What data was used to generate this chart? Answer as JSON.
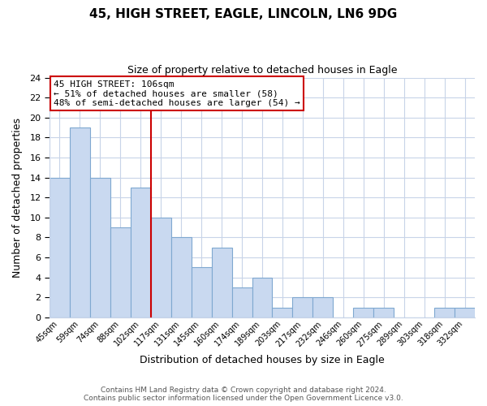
{
  "title": "45, HIGH STREET, EAGLE, LINCOLN, LN6 9DG",
  "subtitle": "Size of property relative to detached houses in Eagle",
  "xlabel": "Distribution of detached houses by size in Eagle",
  "ylabel": "Number of detached properties",
  "bins": [
    "45sqm",
    "59sqm",
    "74sqm",
    "88sqm",
    "102sqm",
    "117sqm",
    "131sqm",
    "145sqm",
    "160sqm",
    "174sqm",
    "189sqm",
    "203sqm",
    "217sqm",
    "232sqm",
    "246sqm",
    "260sqm",
    "275sqm",
    "289sqm",
    "303sqm",
    "318sqm",
    "332sqm"
  ],
  "values": [
    14,
    19,
    14,
    9,
    13,
    10,
    8,
    5,
    7,
    3,
    4,
    1,
    2,
    2,
    0,
    1,
    1,
    0,
    0,
    1,
    1
  ],
  "bar_color": "#c9d9f0",
  "bar_edge_color": "#7fa8d0",
  "subject_line_index": 4.5,
  "annotation_title": "45 HIGH STREET: 106sqm",
  "annotation_line1": "← 51% of detached houses are smaller (58)",
  "annotation_line2": "48% of semi-detached houses are larger (54) →",
  "annotation_box_color": "#ffffff",
  "annotation_box_edge": "#cc0000",
  "subject_line_color": "#cc0000",
  "ylim": [
    0,
    24
  ],
  "yticks": [
    0,
    2,
    4,
    6,
    8,
    10,
    12,
    14,
    16,
    18,
    20,
    22,
    24
  ],
  "footer1": "Contains HM Land Registry data © Crown copyright and database right 2024.",
  "footer2": "Contains public sector information licensed under the Open Government Licence v3.0.",
  "background_color": "#ffffff",
  "grid_color": "#c8d4e8"
}
